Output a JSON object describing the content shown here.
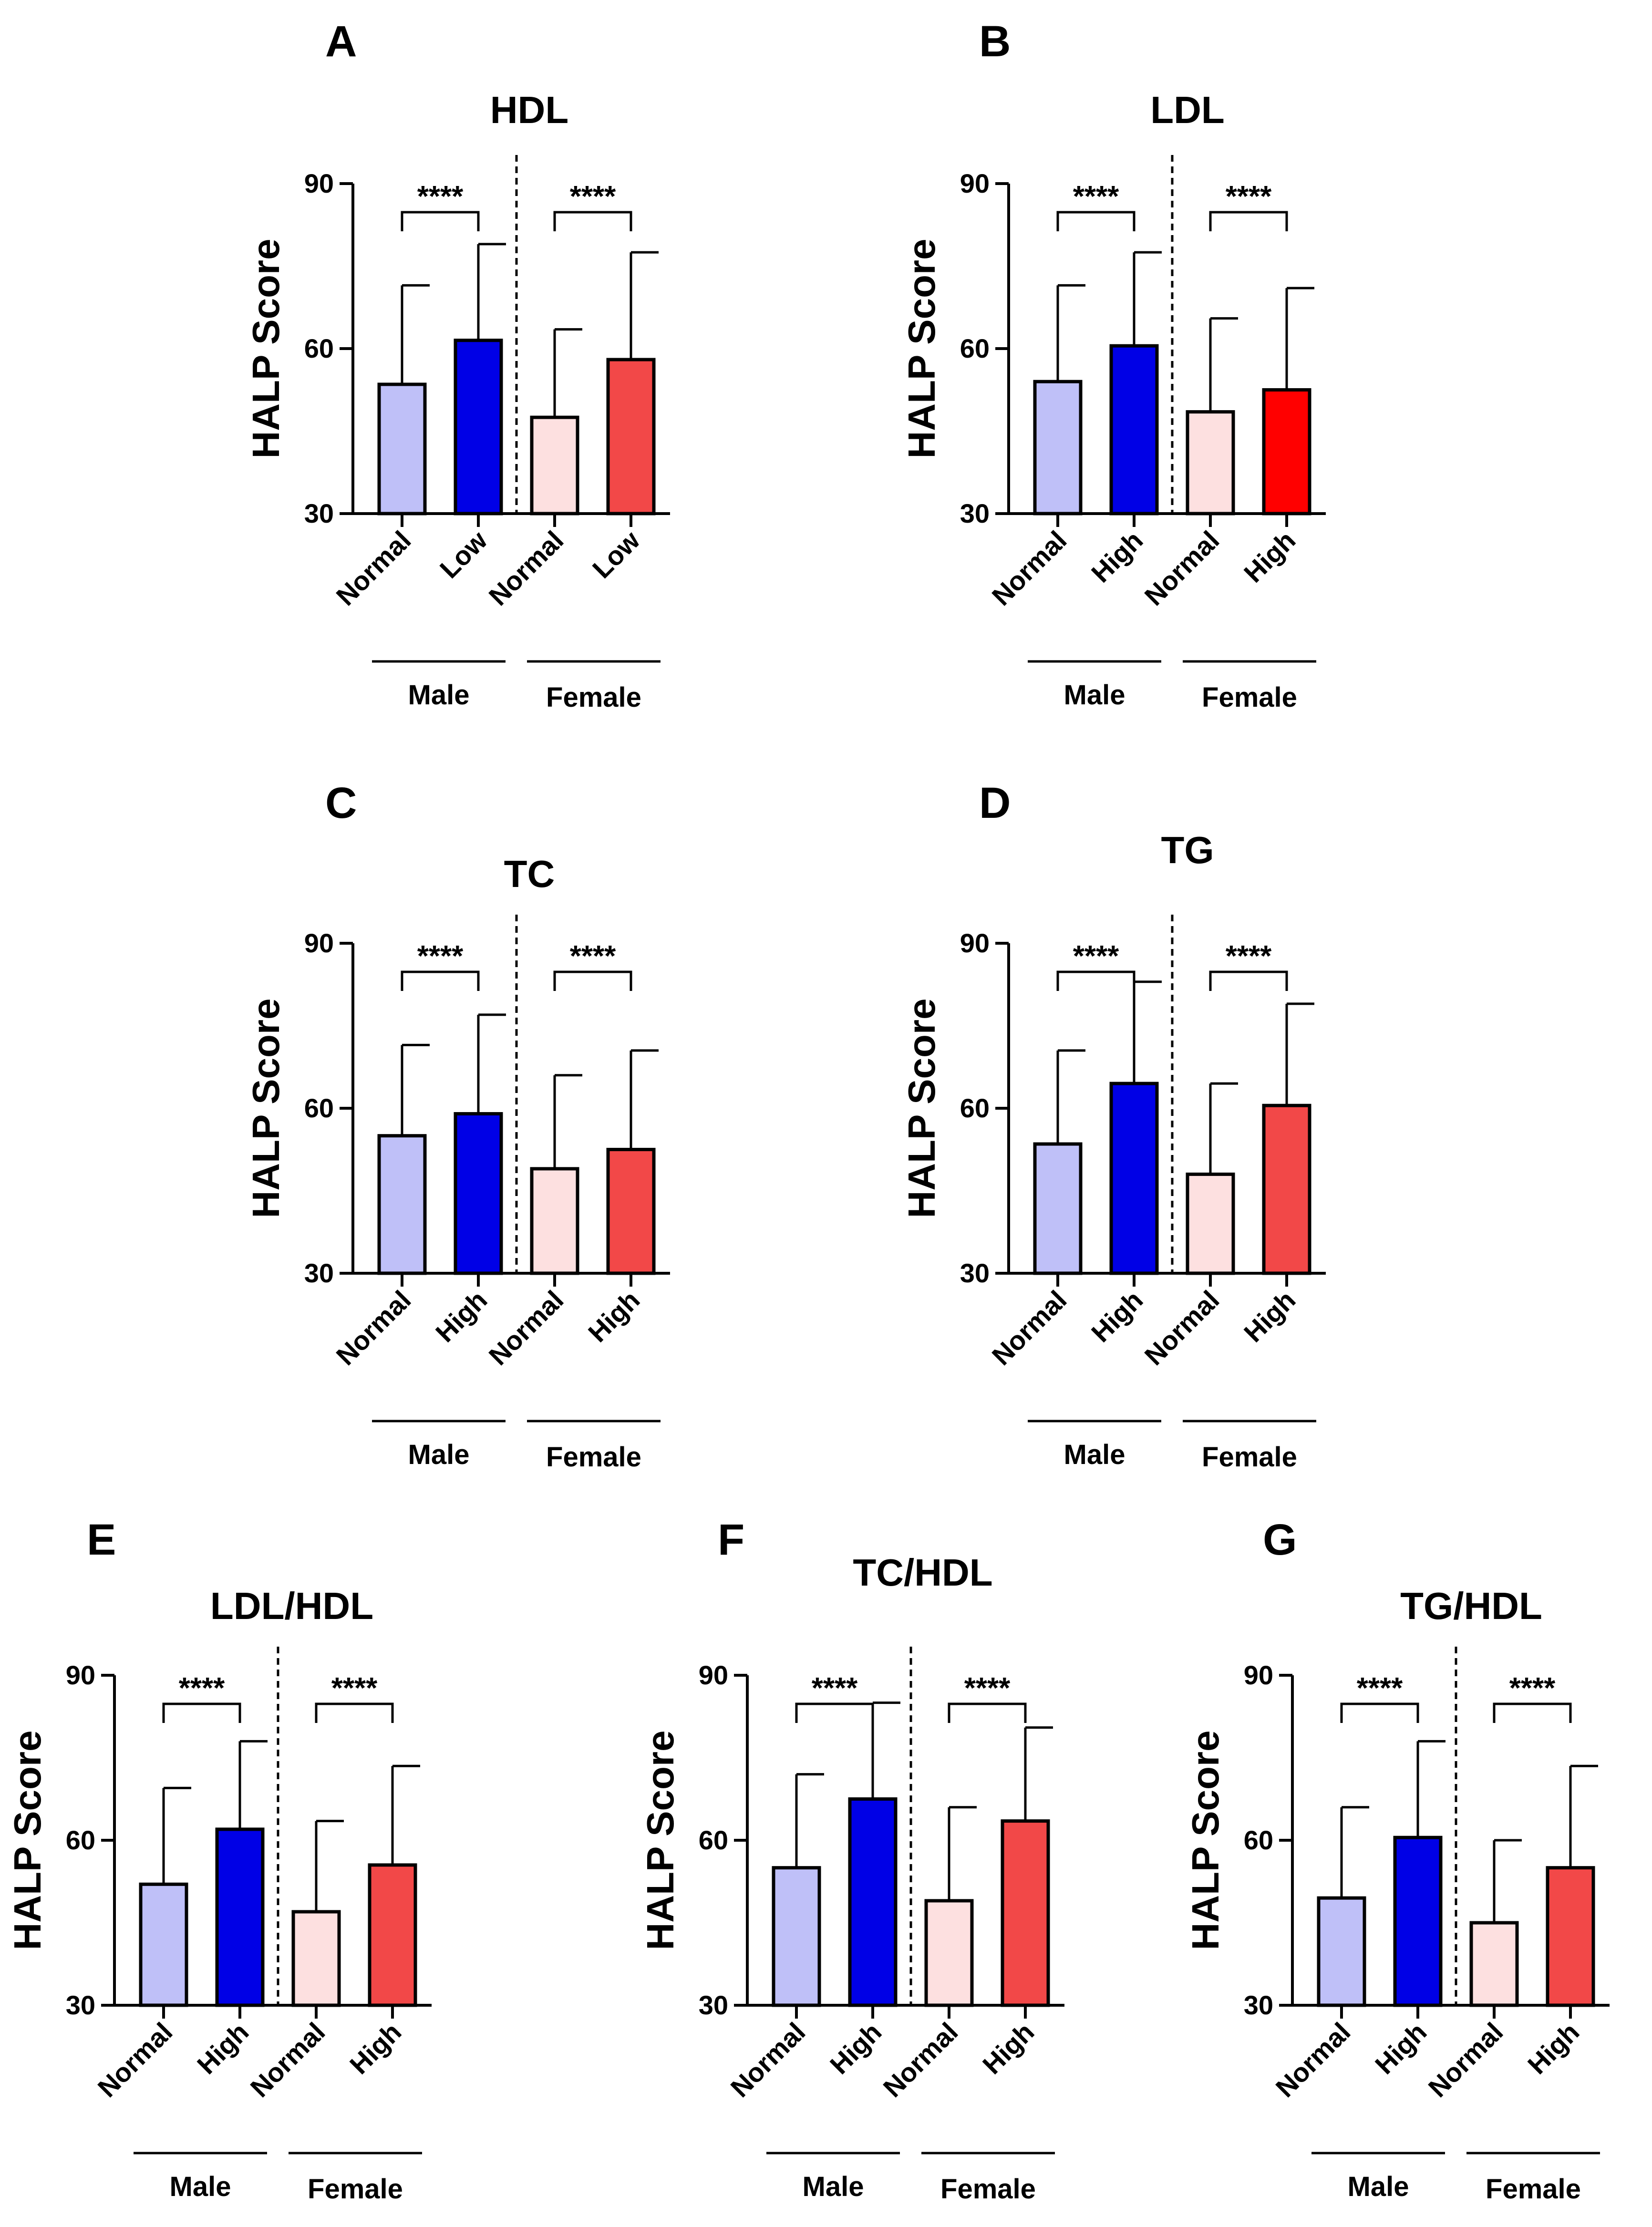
{
  "colors": {
    "male_normal": "#BFC0F8",
    "male_high": "#0000E6",
    "female_normal": "#FDE0E0",
    "female_high": "#F24848",
    "female_high_bright": "#FF0000",
    "axis": "#000000"
  },
  "chart_data": [
    {
      "panel": "A",
      "type": "bar",
      "title": "HDL",
      "ylabel": "HALP Score",
      "ylim": [
        30,
        90
      ],
      "yticks": [
        "30",
        "60",
        "90"
      ],
      "categories": [
        "Normal",
        "Low",
        "Normal",
        "Low"
      ],
      "groups": [
        "Male",
        "Female"
      ],
      "values": [
        53.5,
        61.5,
        47.5,
        58
      ],
      "errors": [
        71.5,
        79,
        63.5,
        77.5
      ],
      "sig": [
        "****",
        "****"
      ],
      "fills": [
        "male_normal",
        "male_high",
        "female_normal",
        "female_high"
      ]
    },
    {
      "panel": "B",
      "type": "bar",
      "title": "LDL",
      "ylabel": "HALP Score",
      "ylim": [
        30,
        90
      ],
      "yticks": [
        "30",
        "60",
        "90"
      ],
      "categories": [
        "Normal",
        "High",
        "Normal",
        "High"
      ],
      "groups": [
        "Male",
        "Female"
      ],
      "values": [
        54,
        60.5,
        48.5,
        52.5
      ],
      "errors": [
        71.5,
        77.5,
        65.5,
        71
      ],
      "sig": [
        "****",
        "****"
      ],
      "fills": [
        "male_normal",
        "male_high",
        "female_normal",
        "female_high_bright"
      ]
    },
    {
      "panel": "C",
      "type": "bar",
      "title": "TC",
      "ylabel": "HALP Score",
      "ylim": [
        30,
        90
      ],
      "yticks": [
        "30",
        "60",
        "90"
      ],
      "categories": [
        "Normal",
        "High",
        "Normal",
        "High"
      ],
      "groups": [
        "Male",
        "Female"
      ],
      "values": [
        55,
        59,
        49,
        52.5
      ],
      "errors": [
        71.5,
        77,
        66,
        70.5
      ],
      "sig": [
        "****",
        "****"
      ],
      "fills": [
        "male_normal",
        "male_high",
        "female_normal",
        "female_high"
      ]
    },
    {
      "panel": "D",
      "type": "bar",
      "title": "TG",
      "ylabel": "HALP Score",
      "ylim": [
        30,
        90
      ],
      "yticks": [
        "30",
        "60",
        "90"
      ],
      "categories": [
        "Normal",
        "High",
        "Normal",
        "High"
      ],
      "groups": [
        "Male",
        "Female"
      ],
      "values": [
        53.5,
        64.5,
        48,
        60.5
      ],
      "errors": [
        70.5,
        83,
        64.5,
        79
      ],
      "sig": [
        "****",
        "****"
      ],
      "fills": [
        "male_normal",
        "male_high",
        "female_normal",
        "female_high"
      ]
    },
    {
      "panel": "E",
      "type": "bar",
      "title": "LDL/HDL",
      "ylabel": "HALP Score",
      "ylim": [
        30,
        90
      ],
      "yticks": [
        "30",
        "60",
        "90"
      ],
      "categories": [
        "Normal",
        "High",
        "Normal",
        "High"
      ],
      "groups": [
        "Male",
        "Female"
      ],
      "values": [
        52,
        62,
        47,
        55.5
      ],
      "errors": [
        69.5,
        78,
        63.5,
        73.5
      ],
      "sig": [
        "****",
        "****"
      ],
      "fills": [
        "male_normal",
        "male_high",
        "female_normal",
        "female_high"
      ]
    },
    {
      "panel": "F",
      "type": "bar",
      "title": "TC/HDL",
      "ylabel": "HALP Score",
      "ylim": [
        30,
        90
      ],
      "yticks": [
        "30",
        "60",
        "90"
      ],
      "categories": [
        "Normal",
        "High",
        "Normal",
        "High"
      ],
      "groups": [
        "Male",
        "Female"
      ],
      "values": [
        55,
        67.5,
        49,
        63.5
      ],
      "errors": [
        72,
        85,
        66,
        80.5
      ],
      "sig": [
        "****",
        "****"
      ],
      "fills": [
        "male_normal",
        "male_high",
        "female_normal",
        "female_high"
      ]
    },
    {
      "panel": "G",
      "type": "bar",
      "title": "TG/HDL",
      "ylabel": "HALP Score",
      "ylim": [
        30,
        90
      ],
      "yticks": [
        "30",
        "60",
        "90"
      ],
      "categories": [
        "Normal",
        "High",
        "Normal",
        "High"
      ],
      "groups": [
        "Male",
        "Female"
      ],
      "values": [
        49.5,
        60.5,
        45,
        55
      ],
      "errors": [
        66,
        78,
        60,
        73.5
      ],
      "sig": [
        "****",
        "****"
      ],
      "fills": [
        "male_normal",
        "male_high",
        "female_normal",
        "female_high"
      ]
    }
  ]
}
